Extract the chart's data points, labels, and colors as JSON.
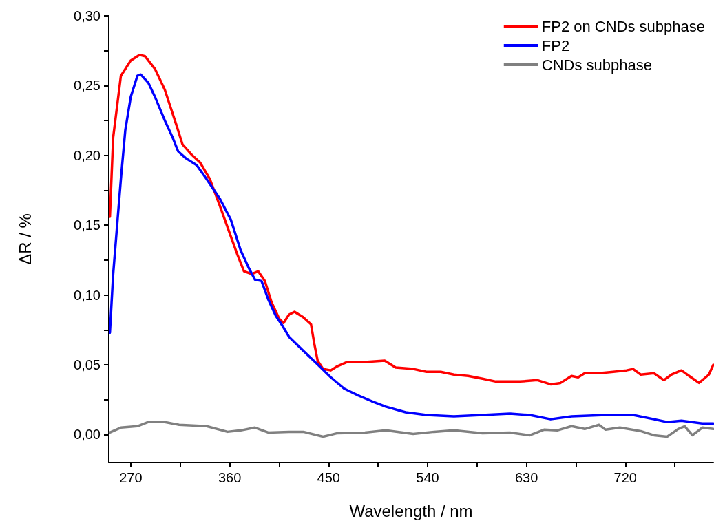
{
  "chart_data": {
    "type": "line",
    "xlabel": "Wavelength / nm",
    "ylabel": "ΔR / %",
    "xlim": [
      250,
      800
    ],
    "ylim": [
      -0.02,
      0.3
    ],
    "xticks": [
      270,
      {
        "value": 315,
        "label": null
      },
      360,
      {
        "value": 405,
        "label": null
      },
      450,
      {
        "value": 495,
        "label": null
      },
      540,
      {
        "value": 585,
        "label": null
      },
      630,
      {
        "value": 675,
        "label": null
      },
      720,
      {
        "value": 765,
        "label": null
      }
    ],
    "yticks": [
      {
        "value": 0,
        "label": "0,00"
      },
      {
        "value": 0.025,
        "label": null
      },
      {
        "value": 0.05,
        "label": "0,05"
      },
      {
        "value": 0.075,
        "label": null
      },
      {
        "value": 0.1,
        "label": "0,10"
      },
      {
        "value": 0.125,
        "label": null
      },
      {
        "value": 0.15,
        "label": "0,15"
      },
      {
        "value": 0.175,
        "label": null
      },
      {
        "value": 0.2,
        "label": "0,20"
      },
      {
        "value": 0.225,
        "label": null
      },
      {
        "value": 0.25,
        "label": "0,25"
      },
      {
        "value": 0.275,
        "label": null
      },
      {
        "value": 0.3,
        "label": "0,30"
      }
    ],
    "grid": false,
    "legend": "top right",
    "marker": "none",
    "line_style": "solid",
    "series": [
      {
        "name": "FP2 on CNDs subphase",
        "color": "#ff0000",
        "x": [
          251,
          254,
          261,
          270,
          278,
          283,
          292,
          301,
          311,
          317,
          326,
          333,
          342,
          351,
          361,
          367,
          373,
          380,
          386,
          392,
          398,
          405,
          409,
          414,
          419,
          427,
          434,
          437,
          440,
          445,
          452,
          458,
          467,
          483,
          501,
          511,
          527,
          539,
          552,
          564,
          577,
          590,
          602,
          615,
          624,
          640,
          652,
          661,
          671,
          677,
          683,
          696,
          709,
          721,
          727,
          734,
          746,
          755,
          762,
          771,
          778,
          787,
          796,
          800
        ],
        "values": [
          0.156,
          0.213,
          0.257,
          0.268,
          0.272,
          0.271,
          0.262,
          0.247,
          0.223,
          0.208,
          0.2,
          0.195,
          0.183,
          0.164,
          0.142,
          0.129,
          0.117,
          0.115,
          0.117,
          0.11,
          0.095,
          0.083,
          0.08,
          0.086,
          0.088,
          0.084,
          0.079,
          0.065,
          0.053,
          0.047,
          0.046,
          0.049,
          0.052,
          0.052,
          0.053,
          0.048,
          0.047,
          0.045,
          0.045,
          0.043,
          0.042,
          0.04,
          0.038,
          0.038,
          0.038,
          0.039,
          0.036,
          0.037,
          0.042,
          0.041,
          0.044,
          0.044,
          0.045,
          0.046,
          0.047,
          0.043,
          0.044,
          0.039,
          0.043,
          0.046,
          0.042,
          0.037,
          0.043,
          0.05
        ]
      },
      {
        "name": "FP2",
        "color": "#0000ff",
        "x": [
          251,
          254,
          258,
          261,
          265,
          270,
          276,
          279,
          286,
          292,
          301,
          308,
          313,
          320,
          330,
          339,
          351,
          361,
          370,
          377,
          383,
          389,
          395,
          402,
          408,
          414,
          427,
          439,
          452,
          464,
          477,
          489,
          502,
          520,
          539,
          564,
          590,
          615,
          633,
          652,
          671,
          702,
          727,
          746,
          758,
          771,
          790,
          800
        ],
        "values": [
          0.073,
          0.115,
          0.154,
          0.183,
          0.218,
          0.242,
          0.257,
          0.258,
          0.252,
          0.242,
          0.225,
          0.213,
          0.203,
          0.198,
          0.193,
          0.183,
          0.169,
          0.154,
          0.132,
          0.12,
          0.111,
          0.11,
          0.097,
          0.085,
          0.078,
          0.07,
          0.06,
          0.051,
          0.041,
          0.033,
          0.028,
          0.024,
          0.02,
          0.016,
          0.014,
          0.013,
          0.014,
          0.015,
          0.014,
          0.011,
          0.013,
          0.014,
          0.014,
          0.011,
          0.009,
          0.01,
          0.008,
          0.008
        ]
      },
      {
        "name": "CNDs subphase",
        "color": "#808080",
        "x": [
          251,
          261,
          276,
          286,
          301,
          314,
          339,
          358,
          370,
          383,
          395,
          414,
          427,
          445,
          458,
          483,
          502,
          527,
          546,
          564,
          590,
          615,
          633,
          646,
          658,
          671,
          683,
          696,
          702,
          715,
          734,
          746,
          758,
          768,
          774,
          781,
          790,
          800
        ],
        "values": [
          0.0015,
          0.005,
          0.006,
          0.009,
          0.009,
          0.007,
          0.006,
          0.002,
          0.003,
          0.005,
          0.0015,
          0.002,
          0.002,
          -0.0015,
          0.001,
          0.0015,
          0.003,
          0.0005,
          0.002,
          0.003,
          0.001,
          0.0015,
          -0.0005,
          0.0035,
          0.003,
          0.006,
          0.004,
          0.007,
          0.0035,
          0.005,
          0.0025,
          -0.0005,
          -0.0015,
          0.004,
          0.006,
          -0.0005,
          0.005,
          0.004
        ]
      }
    ]
  }
}
